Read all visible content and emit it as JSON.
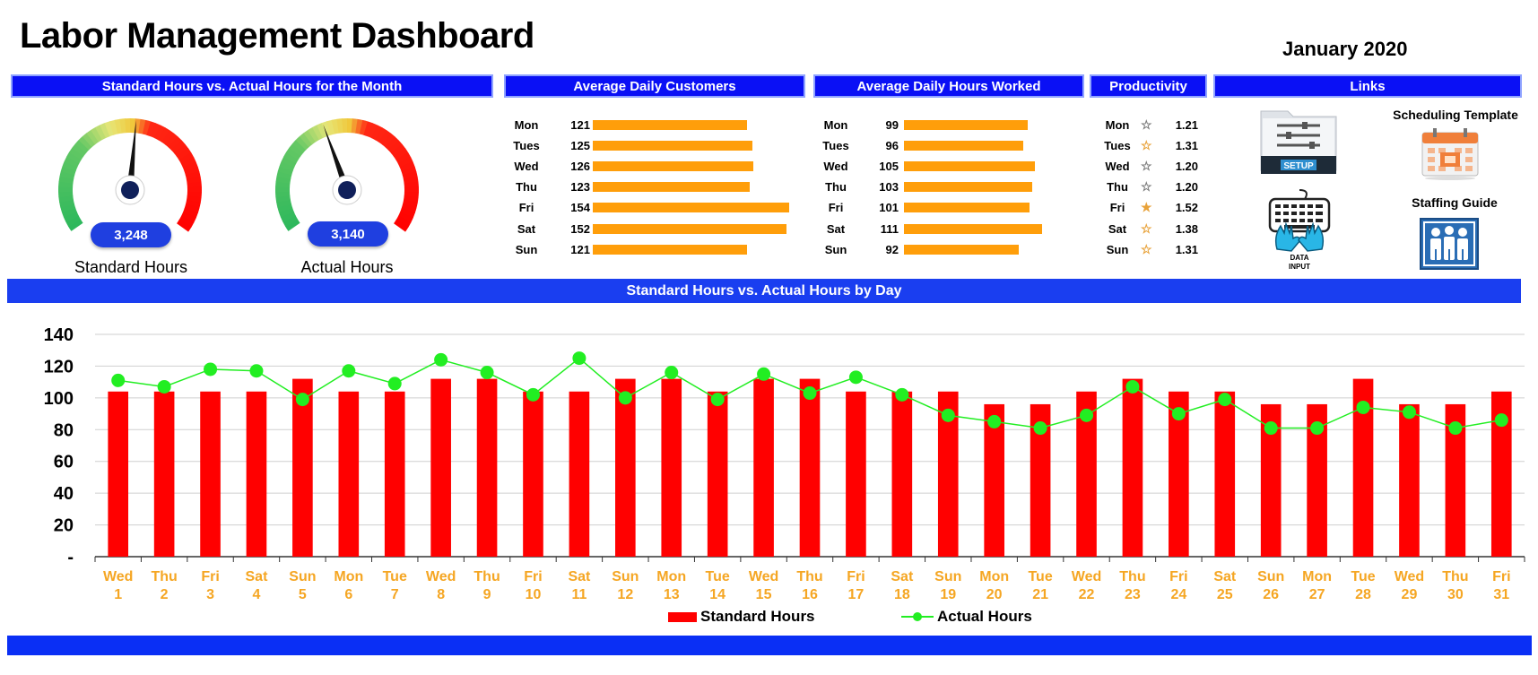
{
  "title": "Labor Management Dashboard",
  "month": "January 2020",
  "colors": {
    "header_blue": "#0a10f5",
    "bar_orange": "#ff9e0a",
    "standard_red": "#ff0000",
    "actual_green": "#22ee22",
    "axis_label_orange": "#f5a623"
  },
  "panels": {
    "gauges_title": "Standard Hours vs. Actual Hours for the Month",
    "customers_title": "Average Daily Customers",
    "hours_title": "Average Daily Hours Worked",
    "productivity_title": "Productivity",
    "links_title": "Links"
  },
  "gauges": [
    {
      "value": "3,248",
      "label": "Standard Hours",
      "needle_fraction": 0.52
    },
    {
      "value": "3,140",
      "label": "Actual Hours",
      "needle_fraction": 0.42
    }
  ],
  "customers": {
    "days": [
      "Mon",
      "Tues",
      "Wed",
      "Thu",
      "Fri",
      "Sat",
      "Sun"
    ],
    "values": [
      121,
      125,
      126,
      123,
      154,
      152,
      121
    ]
  },
  "hours_worked": {
    "days": [
      "Mon",
      "Tues",
      "Wed",
      "Thu",
      "Fri",
      "Sat",
      "Sun"
    ],
    "values": [
      99,
      96,
      105,
      103,
      101,
      111,
      92
    ]
  },
  "productivity": {
    "days": [
      "Mon",
      "Tues",
      "Wed",
      "Thu",
      "Fri",
      "Sat",
      "Sun"
    ],
    "values": [
      "1.21",
      "1.31",
      "1.20",
      "1.20",
      "1.52",
      "1.38",
      "1.31"
    ],
    "star_fill": [
      0,
      0.5,
      0,
      0,
      1,
      0.5,
      0.5
    ]
  },
  "links": {
    "scheduling": "Scheduling Template",
    "staffing": "Staffing Guide",
    "setup_text": "SETUP",
    "data_input_line1": "DATA",
    "data_input_line2": "INPUT"
  },
  "chart_title": "Standard Hours  vs. Actual Hours by Day",
  "chart_data": {
    "type": "bar",
    "title": "Standard Hours  vs. Actual Hours by Day",
    "ylim": [
      0,
      140
    ],
    "yticks": [
      "-",
      "20",
      "40",
      "60",
      "80",
      "100",
      "120",
      "140"
    ],
    "grid": true,
    "legend": "bottom",
    "categories": [
      [
        "Wed",
        "1"
      ],
      [
        "Thu",
        "2"
      ],
      [
        "Fri",
        "3"
      ],
      [
        "Sat",
        "4"
      ],
      [
        "Sun",
        "5"
      ],
      [
        "Mon",
        "6"
      ],
      [
        "Tue",
        "7"
      ],
      [
        "Wed",
        "8"
      ],
      [
        "Thu",
        "9"
      ],
      [
        "Fri",
        "10"
      ],
      [
        "Sat",
        "11"
      ],
      [
        "Sun",
        "12"
      ],
      [
        "Mon",
        "13"
      ],
      [
        "Tue",
        "14"
      ],
      [
        "Wed",
        "15"
      ],
      [
        "Thu",
        "16"
      ],
      [
        "Fri",
        "17"
      ],
      [
        "Sat",
        "18"
      ],
      [
        "Sun",
        "19"
      ],
      [
        "Mon",
        "20"
      ],
      [
        "Tue",
        "21"
      ],
      [
        "Wed",
        "22"
      ],
      [
        "Thu",
        "23"
      ],
      [
        "Fri",
        "24"
      ],
      [
        "Sat",
        "25"
      ],
      [
        "Sun",
        "26"
      ],
      [
        "Mon",
        "27"
      ],
      [
        "Tue",
        "28"
      ],
      [
        "Wed",
        "29"
      ],
      [
        "Thu",
        "30"
      ],
      [
        "Fri",
        "31"
      ]
    ],
    "series": [
      {
        "name": "Standard Hours",
        "type": "bar",
        "values": [
          104,
          104,
          104,
          104,
          112,
          104,
          104,
          112,
          112,
          104,
          104,
          112,
          112,
          104,
          112,
          112,
          104,
          104,
          104,
          96,
          96,
          104,
          112,
          104,
          104,
          96,
          96,
          112,
          96,
          96,
          104
        ]
      },
      {
        "name": "Actual Hours",
        "type": "line",
        "values": [
          111,
          107,
          118,
          117,
          99,
          117,
          109,
          124,
          116,
          102,
          125,
          100,
          116,
          99,
          115,
          103,
          113,
          102,
          89,
          85,
          81,
          89,
          107,
          90,
          99,
          81,
          81,
          94,
          91,
          81,
          86
        ]
      }
    ]
  }
}
